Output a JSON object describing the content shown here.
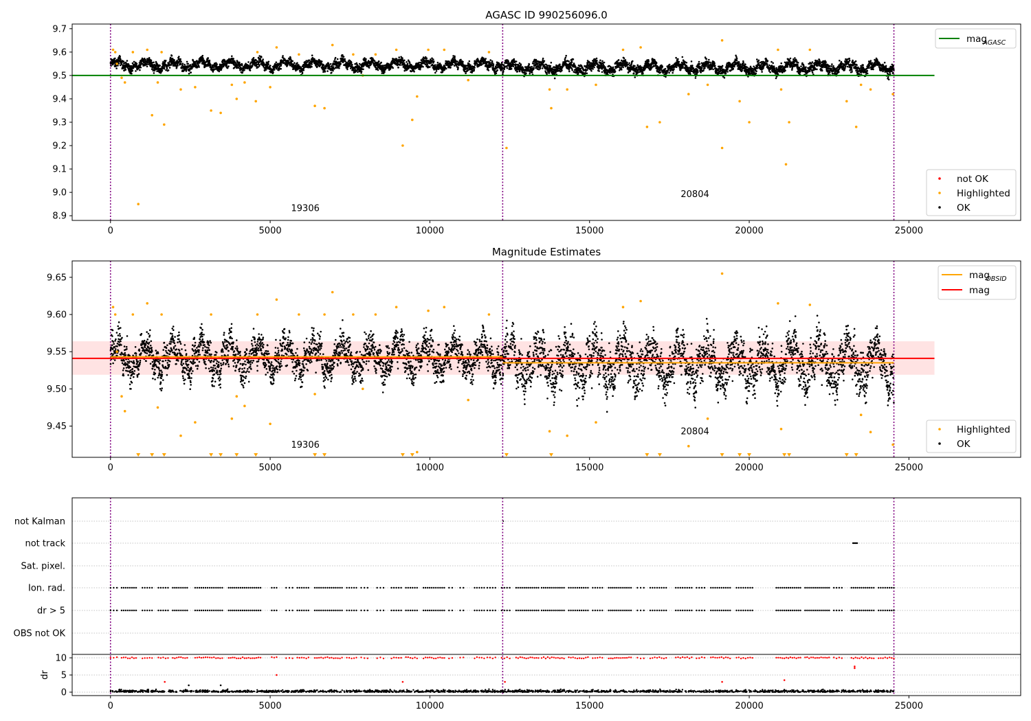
{
  "colors": {
    "ok": "#000000",
    "highlighted": "#ffa500",
    "not_ok": "#ff0000",
    "agasc_line": "#008000",
    "mag_line": "#ff0000",
    "obsid_line": "#ffa500",
    "obs_boundary": "#800080",
    "band_fill": "#ffcccc",
    "grid": "#b0b0b0"
  },
  "chart_data": [
    {
      "type": "scatter",
      "title": "AGASC ID 990256096.0",
      "xlim": [
        -1200,
        28500
      ],
      "ylim": [
        8.88,
        9.72
      ],
      "xticks": [
        0,
        5000,
        10000,
        15000,
        20000,
        25000
      ],
      "xtick_labels": [
        "0",
        "5000",
        "10000",
        "15000",
        "20000",
        "25000"
      ],
      "yticks": [
        8.9,
        9.0,
        9.1,
        9.2,
        9.3,
        9.4,
        9.5,
        9.6,
        9.7
      ],
      "ytick_labels": [
        "8.9",
        "9.0",
        "9.1",
        "9.2",
        "9.3",
        "9.4",
        "9.5",
        "9.6",
        "9.7"
      ],
      "obs_boundaries": [
        0,
        12280,
        24530
      ],
      "obs_labels": [
        {
          "text": "19306",
          "x": 6100,
          "y": 8.92
        },
        {
          "text": "20804",
          "x": 18300,
          "y": 8.98
        }
      ],
      "hlines": [
        {
          "name": "mag",
          "sub": "AGASC",
          "value": 9.5,
          "color": "#008000",
          "xmin": -1200,
          "xmax": 25800
        }
      ],
      "ok_segments": [
        {
          "x_start": 0,
          "x_end": 12280,
          "center": 9.545,
          "spread": 0.04
        },
        {
          "x_start": 12280,
          "x_end": 24530,
          "center": 9.535,
          "spread": 0.045
        }
      ],
      "highlighted_points": [
        [
          80,
          9.61
        ],
        [
          150,
          9.6
        ],
        [
          200,
          9.55
        ],
        [
          350,
          9.49
        ],
        [
          450,
          9.47
        ],
        [
          700,
          9.6
        ],
        [
          870,
          8.95
        ],
        [
          1150,
          9.61
        ],
        [
          1300,
          9.33
        ],
        [
          1480,
          9.47
        ],
        [
          1600,
          9.6
        ],
        [
          1680,
          9.29
        ],
        [
          2200,
          9.44
        ],
        [
          2650,
          9.45
        ],
        [
          3150,
          9.35
        ],
        [
          3450,
          9.34
        ],
        [
          3800,
          9.46
        ],
        [
          3950,
          9.4
        ],
        [
          4200,
          9.47
        ],
        [
          4550,
          9.39
        ],
        [
          4600,
          9.6
        ],
        [
          5000,
          9.45
        ],
        [
          5200,
          9.62
        ],
        [
          5900,
          9.59
        ],
        [
          6400,
          9.37
        ],
        [
          6700,
          9.36
        ],
        [
          6950,
          9.63
        ],
        [
          7600,
          9.59
        ],
        [
          7900,
          9.5
        ],
        [
          8300,
          9.59
        ],
        [
          8950,
          9.61
        ],
        [
          9150,
          9.2
        ],
        [
          9450,
          9.31
        ],
        [
          9600,
          9.41
        ],
        [
          9950,
          9.61
        ],
        [
          10450,
          9.61
        ],
        [
          11200,
          9.48
        ],
        [
          11850,
          9.6
        ],
        [
          12400,
          9.19
        ],
        [
          13750,
          9.44
        ],
        [
          13800,
          9.36
        ],
        [
          14300,
          9.44
        ],
        [
          15200,
          9.46
        ],
        [
          16050,
          9.61
        ],
        [
          16600,
          9.62
        ],
        [
          16800,
          9.28
        ],
        [
          17200,
          9.3
        ],
        [
          18100,
          9.42
        ],
        [
          18700,
          9.46
        ],
        [
          19150,
          9.65
        ],
        [
          19150,
          9.19
        ],
        [
          19700,
          9.39
        ],
        [
          20000,
          9.3
        ],
        [
          20900,
          9.61
        ],
        [
          21000,
          9.44
        ],
        [
          21150,
          9.12
        ],
        [
          21250,
          9.3
        ],
        [
          21900,
          9.61
        ],
        [
          23050,
          9.39
        ],
        [
          23350,
          9.28
        ],
        [
          23500,
          9.46
        ],
        [
          23800,
          9.44
        ],
        [
          24500,
          9.42
        ]
      ],
      "legend_top": [
        {
          "label": "mag",
          "sub": "AGASC",
          "color": "#008000"
        }
      ],
      "legend_bottom": [
        {
          "label": "not OK",
          "color": "#ff0000"
        },
        {
          "label": "Highlighted",
          "color": "#ffa500"
        },
        {
          "label": "OK",
          "color": "#000000"
        }
      ]
    },
    {
      "type": "scatter",
      "title": "Magnitude Estimates",
      "xlim": [
        -1200,
        28500
      ],
      "ylim": [
        9.408,
        9.672
      ],
      "xticks": [
        0,
        5000,
        10000,
        15000,
        20000,
        25000
      ],
      "xtick_labels": [
        "0",
        "5000",
        "10000",
        "15000",
        "20000",
        "25000"
      ],
      "yticks": [
        9.45,
        9.5,
        9.55,
        9.6,
        9.65
      ],
      "ytick_labels": [
        "9.45",
        "9.50",
        "9.55",
        "9.60",
        "9.65"
      ],
      "obs_boundaries": [
        0,
        12280,
        24530
      ],
      "obs_labels": [
        {
          "text": "19306",
          "x": 6100,
          "y": 9.421
        },
        {
          "text": "20804",
          "x": 18300,
          "y": 9.439
        }
      ],
      "mag_band": {
        "center": 9.541,
        "low": 9.519,
        "high": 9.564,
        "xmin": -1200,
        "xmax": 25800
      },
      "obsid_lines": [
        {
          "x_start": 0,
          "x_end": 12280,
          "value": 9.543
        },
        {
          "x_start": 12280,
          "x_end": 24530,
          "value": 9.535
        }
      ],
      "ok_segments": [
        {
          "x_start": 0,
          "x_end": 12280,
          "center": 9.543,
          "spread": 0.045
        },
        {
          "x_start": 12280,
          "x_end": 24530,
          "center": 9.535,
          "spread": 0.06
        }
      ],
      "highlighted_points": [
        [
          80,
          9.61
        ],
        [
          150,
          9.6
        ],
        [
          200,
          9.55
        ],
        [
          350,
          9.49
        ],
        [
          450,
          9.47
        ],
        [
          700,
          9.6
        ],
        [
          1150,
          9.615
        ],
        [
          1480,
          9.475
        ],
        [
          1600,
          9.6
        ],
        [
          2200,
          9.437
        ],
        [
          2650,
          9.455
        ],
        [
          3150,
          9.6
        ],
        [
          3800,
          9.46
        ],
        [
          3950,
          9.49
        ],
        [
          4200,
          9.477
        ],
        [
          4600,
          9.6
        ],
        [
          5000,
          9.453
        ],
        [
          5200,
          9.62
        ],
        [
          5900,
          9.6
        ],
        [
          6400,
          9.493
        ],
        [
          6700,
          9.6
        ],
        [
          6950,
          9.63
        ],
        [
          7600,
          9.6
        ],
        [
          7900,
          9.5
        ],
        [
          8300,
          9.6
        ],
        [
          8950,
          9.61
        ],
        [
          9600,
          9.415
        ],
        [
          9950,
          9.605
        ],
        [
          10450,
          9.61
        ],
        [
          11200,
          9.485
        ],
        [
          11850,
          9.6
        ],
        [
          13750,
          9.443
        ],
        [
          14300,
          9.437
        ],
        [
          15200,
          9.455
        ],
        [
          16050,
          9.61
        ],
        [
          16600,
          9.618
        ],
        [
          18100,
          9.423
        ],
        [
          18700,
          9.46
        ],
        [
          19150,
          9.655
        ],
        [
          20900,
          9.615
        ],
        [
          21000,
          9.446
        ],
        [
          21900,
          9.613
        ],
        [
          23500,
          9.465
        ],
        [
          23800,
          9.442
        ],
        [
          24500,
          9.425
        ]
      ],
      "clipped_markers_x": [
        870,
        1300,
        1680,
        3150,
        3450,
        3950,
        4550,
        6400,
        6700,
        9150,
        9450,
        12400,
        13800,
        16800,
        17200,
        19150,
        19700,
        20000,
        21100,
        21250,
        23050,
        23350
      ],
      "legend_top": [
        {
          "label": "mag",
          "sub": "OBSID",
          "color": "#ffa500"
        },
        {
          "label": "mag",
          "sub": "",
          "color": "#ff0000"
        }
      ],
      "legend_bottom": [
        {
          "label": "Highlighted",
          "color": "#ffa500"
        },
        {
          "label": "OK",
          "color": "#000000"
        }
      ]
    },
    {
      "type": "scatter",
      "title": "",
      "xlim": [
        -1200,
        28500
      ],
      "xticks": [
        0,
        5000,
        10000,
        15000,
        20000,
        25000
      ],
      "xtick_labels": [
        "0",
        "5000",
        "10000",
        "15000",
        "20000",
        "25000"
      ],
      "obs_boundaries": [
        0,
        12280,
        24530
      ],
      "flag_rows": [
        "not Kalman",
        "not track",
        "Sat. pixel.",
        "Ion. rad.",
        "dr > 5",
        "OBS not OK"
      ],
      "flag_clusters": [
        [
          0,
          200
        ],
        [
          350,
          800
        ],
        [
          1000,
          1300
        ],
        [
          1500,
          1800
        ],
        [
          1950,
          2400
        ],
        [
          2650,
          3500
        ],
        [
          3700,
          4700
        ],
        [
          5050,
          5200
        ],
        [
          5500,
          5700
        ],
        [
          5850,
          6200
        ],
        [
          6400,
          7250
        ],
        [
          7400,
          7700
        ],
        [
          7850,
          8050
        ],
        [
          8350,
          8550
        ],
        [
          8800,
          9100
        ],
        [
          9250,
          9600
        ],
        [
          9800,
          10450
        ],
        [
          10600,
          10700
        ],
        [
          10950,
          11050
        ],
        [
          11400,
          11700
        ],
        [
          11800,
          12050
        ],
        [
          12250,
          12500
        ],
        [
          12700,
          13400
        ],
        [
          13500,
          14200
        ],
        [
          14350,
          14950
        ],
        [
          15100,
          15400
        ],
        [
          15600,
          16300
        ],
        [
          16500,
          16700
        ],
        [
          16900,
          17400
        ],
        [
          17700,
          18200
        ],
        [
          18350,
          18600
        ],
        [
          18800,
          19400
        ],
        [
          19600,
          20100
        ],
        [
          20850,
          21600
        ],
        [
          21750,
          22500
        ],
        [
          22650,
          22900
        ],
        [
          23200,
          23900
        ],
        [
          24050,
          24530
        ]
      ],
      "not_track_range": [
        23250,
        23400
      ],
      "not_kalman_x": [
        12300
      ],
      "dr_ylabel": "dr",
      "dr_yticks": [
        0,
        5,
        10
      ],
      "dr_ytick_labels": [
        "0",
        "5",
        "10"
      ],
      "dr_ylim": [
        -1,
        11
      ],
      "dr_outliers": [
        [
          1700,
          3
        ],
        [
          5200,
          5
        ],
        [
          9150,
          3
        ],
        [
          12350,
          3
        ],
        [
          19150,
          3
        ],
        [
          21100,
          3.5
        ],
        [
          23300,
          7
        ],
        [
          23300,
          7.5
        ],
        [
          3450,
          2
        ],
        [
          2450,
          2
        ]
      ]
    }
  ]
}
